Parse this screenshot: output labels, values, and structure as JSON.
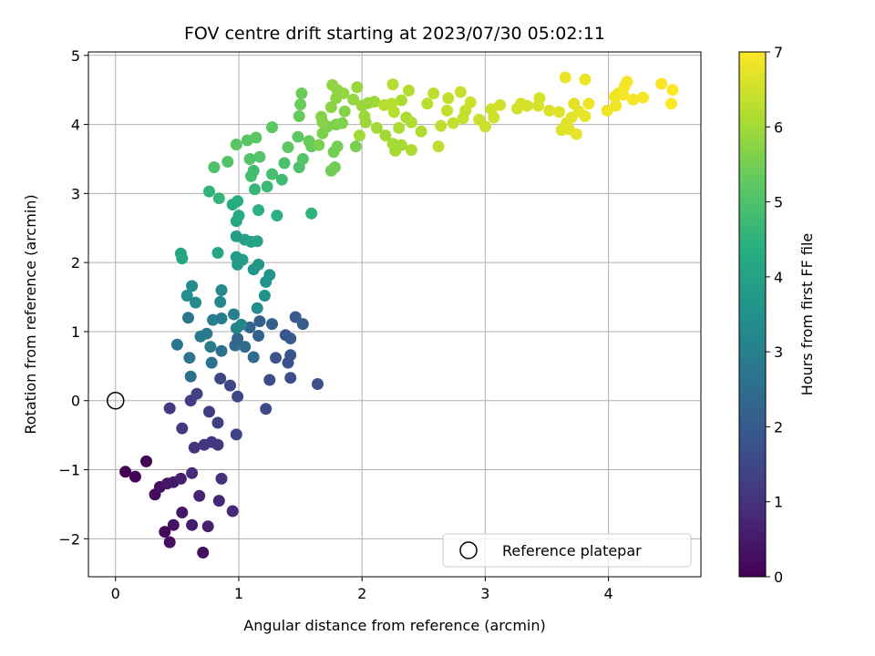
{
  "chart_data": {
    "type": "scatter",
    "title": "FOV centre drift starting at 2023/07/30 05:02:11",
    "xlabel": "Angular distance from reference (arcmin)",
    "ylabel": "Rotation from reference (arcmin)",
    "xlim": [
      -0.22,
      4.75
    ],
    "ylim": [
      -2.55,
      5.05
    ],
    "xticks": [
      0,
      1,
      2,
      3,
      4
    ],
    "yticks": [
      -2,
      -1,
      0,
      1,
      2,
      3,
      4,
      5
    ],
    "x_tick_labels": [
      "0",
      "1",
      "2",
      "3",
      "4"
    ],
    "y_tick_labels": [
      "−2",
      "−1",
      "0",
      "1",
      "2",
      "3",
      "4",
      "5"
    ],
    "grid": true,
    "legend_placement": "lower-right",
    "legend": {
      "label": "Reference platepar"
    },
    "reference_point": {
      "x": 0,
      "y": 0
    },
    "colormap": "viridis",
    "colorbar": {
      "label": "Hours from first FF file",
      "range": [
        0,
        7
      ],
      "ticks": [
        0,
        1,
        2,
        3,
        4,
        5,
        6,
        7
      ],
      "tick_labels": [
        "0",
        "1",
        "2",
        "3",
        "4",
        "5",
        "6",
        "7"
      ]
    },
    "points": [
      [
        0.08,
        -1.03,
        0.0
      ],
      [
        0.16,
        -1.1,
        0.1
      ],
      [
        0.25,
        -0.88,
        0.05
      ],
      [
        0.32,
        -1.36,
        0.2
      ],
      [
        0.36,
        -1.25,
        0.3
      ],
      [
        0.42,
        -1.2,
        0.4
      ],
      [
        0.47,
        -1.18,
        0.5
      ],
      [
        0.53,
        -1.13,
        0.6
      ],
      [
        0.4,
        -1.9,
        0.15
      ],
      [
        0.44,
        -2.05,
        0.25
      ],
      [
        0.47,
        -1.8,
        0.35
      ],
      [
        0.54,
        -1.62,
        0.45
      ],
      [
        0.62,
        -1.8,
        0.55
      ],
      [
        0.71,
        -2.2,
        0.25
      ],
      [
        0.68,
        -1.38,
        0.7
      ],
      [
        0.75,
        -1.82,
        0.6
      ],
      [
        0.84,
        -1.45,
        0.75
      ],
      [
        0.95,
        -1.6,
        0.8
      ],
      [
        0.62,
        -1.05,
        0.85
      ],
      [
        0.86,
        -1.13,
        0.95
      ],
      [
        0.64,
        -0.68,
        1.0
      ],
      [
        0.72,
        -0.64,
        1.05
      ],
      [
        0.78,
        -0.6,
        1.1
      ],
      [
        0.83,
        -0.64,
        1.1
      ],
      [
        0.54,
        -0.4,
        1.15
      ],
      [
        0.44,
        -0.11,
        1.2
      ],
      [
        0.61,
        0.0,
        1.25
      ],
      [
        0.66,
        0.1,
        1.3
      ],
      [
        0.76,
        -0.16,
        1.3
      ],
      [
        0.83,
        -0.32,
        1.35
      ],
      [
        0.98,
        -0.49,
        1.4
      ],
      [
        0.93,
        0.22,
        1.45
      ],
      [
        0.99,
        0.06,
        1.5
      ],
      [
        0.85,
        0.32,
        1.5
      ],
      [
        1.22,
        -0.12,
        1.55
      ],
      [
        1.25,
        0.3,
        1.6
      ],
      [
        1.42,
        0.33,
        1.65
      ],
      [
        1.64,
        0.24,
        1.7
      ],
      [
        1.3,
        0.62,
        1.75
      ],
      [
        1.4,
        0.55,
        1.8
      ],
      [
        1.42,
        0.66,
        1.85
      ],
      [
        1.38,
        0.95,
        1.9
      ],
      [
        1.42,
        0.9,
        1.95
      ],
      [
        1.46,
        1.21,
        2.0
      ],
      [
        1.52,
        1.11,
        2.05
      ],
      [
        1.17,
        1.15,
        2.1
      ],
      [
        1.27,
        1.11,
        2.15
      ],
      [
        1.16,
        0.94,
        2.2
      ],
      [
        1.09,
        1.06,
        2.25
      ],
      [
        0.99,
        0.9,
        2.3
      ],
      [
        0.97,
        0.8,
        2.35
      ],
      [
        1.05,
        0.78,
        2.4
      ],
      [
        1.12,
        0.63,
        2.45
      ],
      [
        0.86,
        0.72,
        2.5
      ],
      [
        0.78,
        0.55,
        2.55
      ],
      [
        0.61,
        0.35,
        2.6
      ],
      [
        0.6,
        0.62,
        2.65
      ],
      [
        0.5,
        0.81,
        2.7
      ],
      [
        0.59,
        1.2,
        2.75
      ],
      [
        0.69,
        0.93,
        2.8
      ],
      [
        0.74,
        0.97,
        2.85
      ],
      [
        0.77,
        0.78,
        2.9
      ],
      [
        0.79,
        1.17,
        2.95
      ],
      [
        0.86,
        1.19,
        3.0
      ],
      [
        0.96,
        1.25,
        3.05
      ],
      [
        0.98,
        1.05,
        3.1
      ],
      [
        1.02,
        1.1,
        3.15
      ],
      [
        0.85,
        1.43,
        3.2
      ],
      [
        0.86,
        1.6,
        3.25
      ],
      [
        0.65,
        1.42,
        3.3
      ],
      [
        0.58,
        1.52,
        3.35
      ],
      [
        0.62,
        1.66,
        3.4
      ],
      [
        1.15,
        1.34,
        3.45
      ],
      [
        1.21,
        1.52,
        3.5
      ],
      [
        1.22,
        1.72,
        3.55
      ],
      [
        1.25,
        1.82,
        3.6
      ],
      [
        1.12,
        1.9,
        3.65
      ],
      [
        1.16,
        1.97,
        3.7
      ],
      [
        0.99,
        1.97,
        3.75
      ],
      [
        0.98,
        2.08,
        3.8
      ],
      [
        1.03,
        2.04,
        3.85
      ],
      [
        0.98,
        2.38,
        3.9
      ],
      [
        1.05,
        2.33,
        3.95
      ],
      [
        1.1,
        2.3,
        4.0
      ],
      [
        1.15,
        2.31,
        4.05
      ],
      [
        0.53,
        2.13,
        4.1
      ],
      [
        0.54,
        2.06,
        4.1
      ],
      [
        0.83,
        2.14,
        4.15
      ],
      [
        0.98,
        2.6,
        4.2
      ],
      [
        1.0,
        2.68,
        4.25
      ],
      [
        0.95,
        2.84,
        4.3
      ],
      [
        0.99,
        2.89,
        4.35
      ],
      [
        1.16,
        2.76,
        4.4
      ],
      [
        1.31,
        2.68,
        4.45
      ],
      [
        1.59,
        2.71,
        4.5
      ],
      [
        0.76,
        3.03,
        4.55
      ],
      [
        0.84,
        2.93,
        4.6
      ],
      [
        1.13,
        3.06,
        4.65
      ],
      [
        1.23,
        3.1,
        4.7
      ],
      [
        1.35,
        3.2,
        4.75
      ],
      [
        1.12,
        3.33,
        4.8
      ],
      [
        1.1,
        3.25,
        4.85
      ],
      [
        1.27,
        3.28,
        4.9
      ],
      [
        1.37,
        3.44,
        4.95
      ],
      [
        1.49,
        3.38,
        5.0
      ],
      [
        0.8,
        3.38,
        5.0
      ],
      [
        0.91,
        3.46,
        5.05
      ],
      [
        1.09,
        3.5,
        5.05
      ],
      [
        1.17,
        3.53,
        5.1
      ],
      [
        1.52,
        3.5,
        5.1
      ],
      [
        0.98,
        3.71,
        5.15
      ],
      [
        1.07,
        3.77,
        5.15
      ],
      [
        1.14,
        3.81,
        5.2
      ],
      [
        1.27,
        3.96,
        5.2
      ],
      [
        1.4,
        3.67,
        5.25
      ],
      [
        1.48,
        3.82,
        5.25
      ],
      [
        1.59,
        3.68,
        5.3
      ],
      [
        1.57,
        3.76,
        5.35
      ],
      [
        1.49,
        4.12,
        5.35
      ],
      [
        1.5,
        4.29,
        5.4
      ],
      [
        1.51,
        4.45,
        5.4
      ],
      [
        1.75,
        3.33,
        5.45
      ],
      [
        1.78,
        3.38,
        5.45
      ],
      [
        1.77,
        3.6,
        5.5
      ],
      [
        1.8,
        3.68,
        5.5
      ],
      [
        1.95,
        3.68,
        5.55
      ],
      [
        1.65,
        3.7,
        5.55
      ],
      [
        1.68,
        3.87,
        5.6
      ],
      [
        1.72,
        3.97,
        5.6
      ],
      [
        1.79,
        4.0,
        5.6
      ],
      [
        1.84,
        4.02,
        5.65
      ],
      [
        1.67,
        4.11,
        5.65
      ],
      [
        1.68,
        4.03,
        5.7
      ],
      [
        1.86,
        4.19,
        5.7
      ],
      [
        1.75,
        4.25,
        5.75
      ],
      [
        1.79,
        4.38,
        5.75
      ],
      [
        1.76,
        4.57,
        5.8
      ],
      [
        1.8,
        4.5,
        5.8
      ],
      [
        1.85,
        4.45,
        5.85
      ],
      [
        1.93,
        4.36,
        5.85
      ],
      [
        1.96,
        4.54,
        5.9
      ],
      [
        2.0,
        4.27,
        5.9
      ],
      [
        2.05,
        4.31,
        5.9
      ],
      [
        2.1,
        4.33,
        5.95
      ],
      [
        2.02,
        4.12,
        5.95
      ],
      [
        2.03,
        4.03,
        5.95
      ],
      [
        1.98,
        3.84,
        6.0
      ],
      [
        2.12,
        3.95,
        6.0
      ],
      [
        2.19,
        3.84,
        6.0
      ],
      [
        2.25,
        3.72,
        6.05
      ],
      [
        2.27,
        3.62,
        6.05
      ],
      [
        2.32,
        3.7,
        6.05
      ],
      [
        2.4,
        3.63,
        6.1
      ],
      [
        2.3,
        3.95,
        6.1
      ],
      [
        2.36,
        4.1,
        6.1
      ],
      [
        2.4,
        4.03,
        6.15
      ],
      [
        2.48,
        3.9,
        6.15
      ],
      [
        2.32,
        4.35,
        6.15
      ],
      [
        2.38,
        4.49,
        6.2
      ],
      [
        2.25,
        4.58,
        6.2
      ],
      [
        2.18,
        4.28,
        6.2
      ],
      [
        2.24,
        4.3,
        6.25
      ],
      [
        2.26,
        4.18,
        6.25
      ],
      [
        2.53,
        4.3,
        6.25
      ],
      [
        2.58,
        4.45,
        6.3
      ],
      [
        2.62,
        3.68,
        6.3
      ],
      [
        2.64,
        3.98,
        6.3
      ],
      [
        2.69,
        4.2,
        6.35
      ],
      [
        2.7,
        4.38,
        6.35
      ],
      [
        2.74,
        4.02,
        6.35
      ],
      [
        2.8,
        4.47,
        6.4
      ],
      [
        2.82,
        4.09,
        6.4
      ],
      [
        2.84,
        4.2,
        6.4
      ],
      [
        2.88,
        4.32,
        6.45
      ],
      [
        2.95,
        4.07,
        6.45
      ],
      [
        3.0,
        3.97,
        6.45
      ],
      [
        3.05,
        4.22,
        6.5
      ],
      [
        3.07,
        4.1,
        6.5
      ],
      [
        3.12,
        4.28,
        6.5
      ],
      [
        3.26,
        4.23,
        6.55
      ],
      [
        3.29,
        4.3,
        6.55
      ],
      [
        3.34,
        4.27,
        6.55
      ],
      [
        3.44,
        4.38,
        6.6
      ],
      [
        3.43,
        4.27,
        6.6
      ],
      [
        3.52,
        4.2,
        6.6
      ],
      [
        3.6,
        4.18,
        6.65
      ],
      [
        3.62,
        3.92,
        6.65
      ],
      [
        3.66,
        4.02,
        6.65
      ],
      [
        3.7,
        4.1,
        6.7
      ],
      [
        3.68,
        3.93,
        6.7
      ],
      [
        3.72,
        4.3,
        6.7
      ],
      [
        3.74,
        3.86,
        6.75
      ],
      [
        3.76,
        4.19,
        6.75
      ],
      [
        3.81,
        4.12,
        6.75
      ],
      [
        3.84,
        4.3,
        6.8
      ],
      [
        3.65,
        4.68,
        6.8
      ],
      [
        3.81,
        4.65,
        6.8
      ],
      [
        3.99,
        4.2,
        6.85
      ],
      [
        4.06,
        4.27,
        6.85
      ],
      [
        4.08,
        4.45,
        6.85
      ],
      [
        4.13,
        4.55,
        6.9
      ],
      [
        4.15,
        4.62,
        6.9
      ],
      [
        4.2,
        4.36,
        6.9
      ],
      [
        4.28,
        4.39,
        6.95
      ],
      [
        4.43,
        4.59,
        6.95
      ],
      [
        4.52,
        4.5,
        7.0
      ],
      [
        4.51,
        4.3,
        7.0
      ],
      [
        4.12,
        4.43,
        6.9
      ],
      [
        4.05,
        4.4,
        6.85
      ]
    ]
  }
}
